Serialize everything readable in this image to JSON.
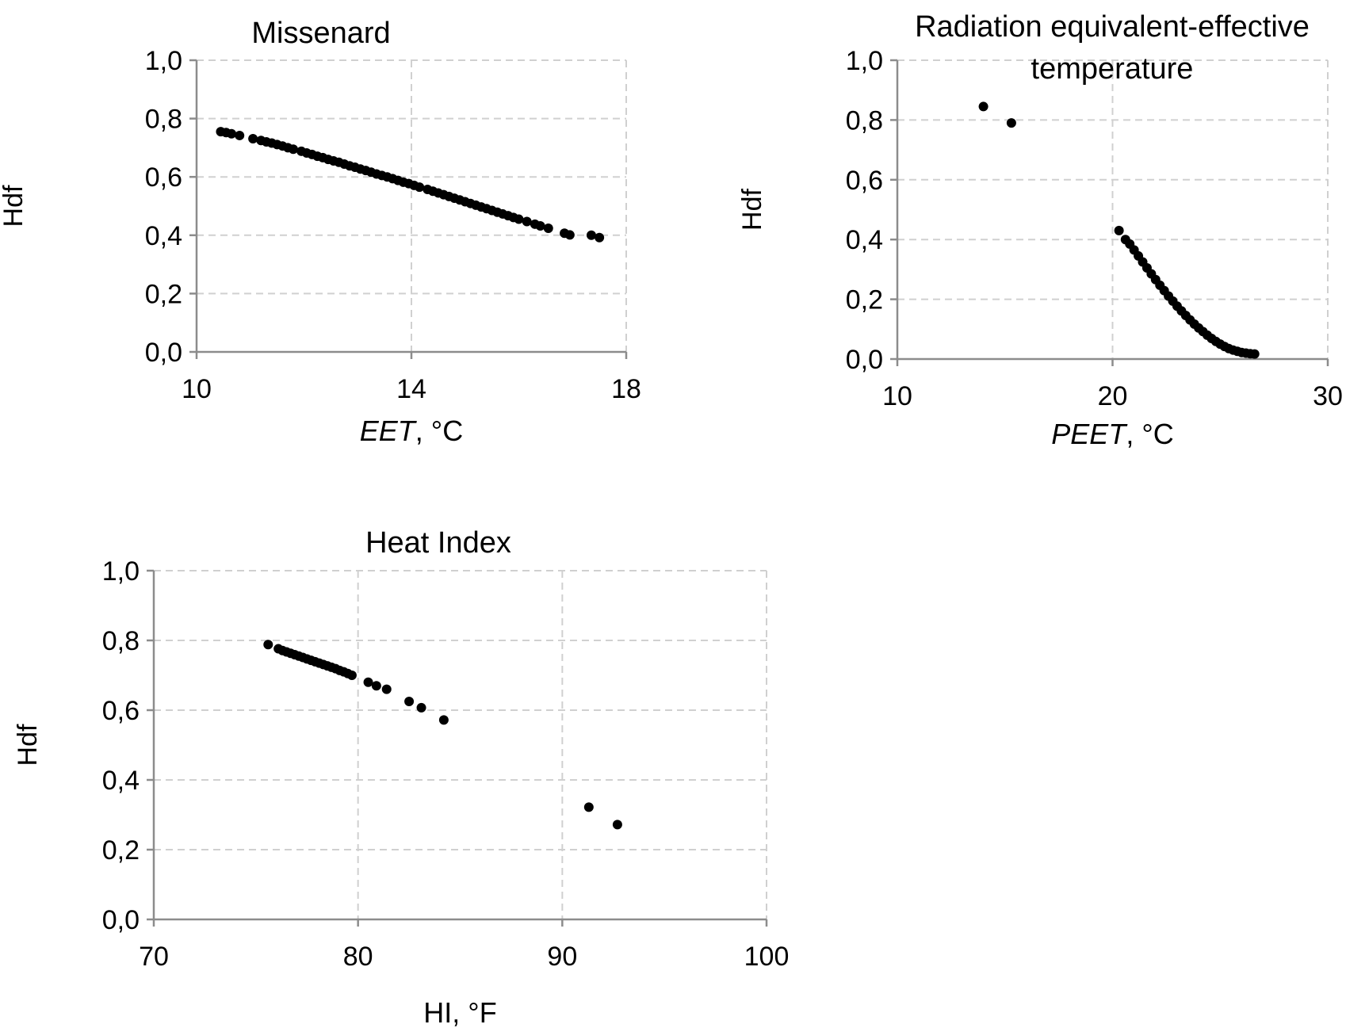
{
  "chart_data": [
    {
      "type": "scatter",
      "title": "Missenard",
      "xlabel_italic": "EET",
      "xlabel_rest": ", °C",
      "ylabel": "Hdf",
      "xlim": [
        10,
        18
      ],
      "ylim": [
        0,
        1
      ],
      "xticks": [
        10,
        14,
        18
      ],
      "xtick_labels": [
        "10",
        "14",
        "18"
      ],
      "yticks": [
        0,
        0.2,
        0.4,
        0.6,
        0.8,
        1.0
      ],
      "ytick_labels": [
        "0,0",
        "0,2",
        "0,4",
        "0,6",
        "0,8",
        "1,0"
      ],
      "grid": true,
      "series": [
        {
          "x": [
            10.45,
            10.55,
            10.65,
            10.8,
            11.05,
            11.2,
            11.3,
            11.4,
            11.5,
            11.6,
            11.7,
            11.8,
            11.95,
            12.05,
            12.15,
            12.25,
            12.35,
            12.45,
            12.55,
            12.65,
            12.75,
            12.85,
            12.95,
            13.05,
            13.15,
            13.25,
            13.35,
            13.45,
            13.55,
            13.65,
            13.75,
            13.85,
            13.95,
            14.05,
            14.15,
            14.3,
            14.4,
            14.5,
            14.6,
            14.7,
            14.8,
            14.9,
            15.0,
            15.1,
            15.2,
            15.3,
            15.4,
            15.5,
            15.6,
            15.7,
            15.8,
            15.9,
            16.0,
            16.15,
            16.3,
            16.4,
            16.55,
            16.85,
            16.95,
            17.35,
            17.5
          ],
          "y": [
            0.755,
            0.752,
            0.748,
            0.742,
            0.731,
            0.725,
            0.72,
            0.716,
            0.711,
            0.706,
            0.7,
            0.695,
            0.688,
            0.682,
            0.677,
            0.671,
            0.666,
            0.66,
            0.655,
            0.65,
            0.644,
            0.638,
            0.633,
            0.627,
            0.622,
            0.616,
            0.61,
            0.605,
            0.6,
            0.594,
            0.588,
            0.582,
            0.577,
            0.571,
            0.565,
            0.557,
            0.551,
            0.545,
            0.539,
            0.533,
            0.527,
            0.521,
            0.515,
            0.509,
            0.503,
            0.497,
            0.491,
            0.485,
            0.479,
            0.473,
            0.467,
            0.461,
            0.455,
            0.447,
            0.438,
            0.432,
            0.424,
            0.407,
            0.401,
            0.4,
            0.392
          ]
        }
      ]
    },
    {
      "type": "scatter",
      "title_lines": [
        "Radiation equivalent-effective",
        "temperature"
      ],
      "xlabel_italic": "PEET",
      "xlabel_rest": ", °C",
      "ylabel": "Hdf",
      "xlim": [
        10,
        30
      ],
      "ylim": [
        0,
        1
      ],
      "xticks": [
        10,
        20,
        30
      ],
      "xtick_labels": [
        "10",
        "20",
        "30"
      ],
      "yticks": [
        0,
        0.2,
        0.4,
        0.6,
        0.8,
        1.0
      ],
      "ytick_labels": [
        "0,0",
        "0,2",
        "0,4",
        "0,6",
        "0,8",
        "1,0"
      ],
      "grid": true,
      "series": [
        {
          "x": [
            14.0,
            15.3,
            20.3,
            20.6,
            20.8,
            21.0,
            21.2,
            21.4,
            21.6,
            21.8,
            22.0,
            22.2,
            22.4,
            22.6,
            22.8,
            23.0,
            23.2,
            23.4,
            23.6,
            23.8,
            24.0,
            24.2,
            24.4,
            24.6,
            24.8,
            25.0,
            25.2,
            25.4,
            25.6,
            25.8,
            26.0,
            26.2,
            26.4,
            26.6
          ],
          "y": [
            0.845,
            0.79,
            0.43,
            0.4,
            0.385,
            0.365,
            0.345,
            0.325,
            0.305,
            0.285,
            0.266,
            0.247,
            0.229,
            0.211,
            0.194,
            0.177,
            0.161,
            0.146,
            0.131,
            0.117,
            0.104,
            0.092,
            0.08,
            0.069,
            0.059,
            0.05,
            0.042,
            0.035,
            0.03,
            0.026,
            0.022,
            0.02,
            0.018,
            0.017
          ]
        }
      ]
    },
    {
      "type": "scatter",
      "title": "Heat Index",
      "xlabel": "HI, °F",
      "ylabel": "Hdf",
      "xlim": [
        70,
        100
      ],
      "ylim": [
        0,
        1
      ],
      "xticks": [
        70,
        80,
        90,
        100
      ],
      "xtick_labels": [
        "70",
        "80",
        "90",
        "100"
      ],
      "yticks": [
        0,
        0.2,
        0.4,
        0.6,
        0.8,
        1.0
      ],
      "ytick_labels": [
        "0,0",
        "0,2",
        "0,4",
        "0,6",
        "0,8",
        "1,0"
      ],
      "grid": true,
      "series": [
        {
          "x": [
            75.6,
            76.1,
            76.3,
            76.5,
            76.7,
            76.9,
            77.1,
            77.3,
            77.5,
            77.7,
            77.9,
            78.1,
            78.3,
            78.5,
            78.7,
            78.9,
            79.1,
            79.3,
            79.5,
            79.7,
            80.5,
            80.9,
            81.4,
            82.5,
            83.1,
            84.2,
            91.3,
            92.7
          ],
          "y": [
            0.788,
            0.776,
            0.771,
            0.767,
            0.763,
            0.759,
            0.755,
            0.751,
            0.747,
            0.743,
            0.739,
            0.735,
            0.731,
            0.727,
            0.723,
            0.719,
            0.714,
            0.71,
            0.705,
            0.7,
            0.68,
            0.67,
            0.66,
            0.625,
            0.607,
            0.572,
            0.322,
            0.272
          ]
        }
      ]
    }
  ]
}
